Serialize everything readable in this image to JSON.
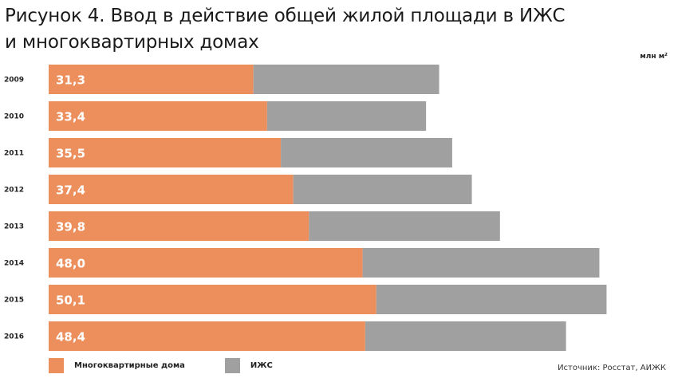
{
  "title_lines": [
    "Рисунок 4. Ввод в действие общей жилой площади в ИЖС",
    "и многоквартирных домах"
  ],
  "unit": "млн м²",
  "source": "Источник: Росстат, АИЖК",
  "colors": {
    "apartments": "#ec8f5c",
    "izhs": "#a0a0a0"
  },
  "chart_data": {
    "type": "bar",
    "orientation": "horizontal",
    "stacked": true,
    "categories": [
      "2009",
      "2010",
      "2011",
      "2012",
      "2013",
      "2014",
      "2015",
      "2016"
    ],
    "series": [
      {
        "name": "Многоквартирные дома",
        "values": [
          31.3,
          33.4,
          35.5,
          37.4,
          39.8,
          48.0,
          50.1,
          48.4
        ],
        "labels": [
          "31,3",
          "33,4",
          "35,5",
          "37,4",
          "39,8",
          "48,0",
          "50,1",
          "48,4"
        ]
      },
      {
        "name": "ИЖС",
        "values": [
          28.4,
          24.3,
          26.2,
          27.3,
          29.2,
          36.2,
          35.2,
          30.7
        ]
      }
    ],
    "legend_position": "bottom-left",
    "grid": false
  }
}
